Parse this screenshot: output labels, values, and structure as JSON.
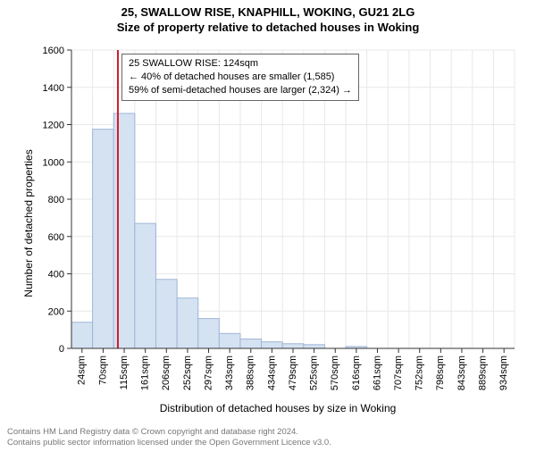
{
  "header": {
    "line1": "25, SWALLOW RISE, KNAPHILL, WOKING, GU21 2LG",
    "line2": "Size of property relative to detached houses in Woking"
  },
  "chart": {
    "type": "histogram",
    "background_color": "#ffffff",
    "grid_color": "#e8e8e8",
    "axis_color": "#333333",
    "bar_fill": "#d5e2f2",
    "bar_stroke": "#9fb6d6",
    "vline_color": "#d11a2a",
    "yaxis": {
      "label": "Number of detached properties",
      "min": 0,
      "max": 1600,
      "ticks": [
        0,
        200,
        400,
        600,
        800,
        1000,
        1200,
        1400,
        1600
      ],
      "label_fontsize": 12,
      "tick_fontsize": 11
    },
    "xaxis": {
      "label": "Distribution of detached houses by size in Woking",
      "categories": [
        "24sqm",
        "70sqm",
        "115sqm",
        "161sqm",
        "206sqm",
        "252sqm",
        "297sqm",
        "343sqm",
        "388sqm",
        "434sqm",
        "479sqm",
        "525sqm",
        "570sqm",
        "616sqm",
        "661sqm",
        "707sqm",
        "752sqm",
        "798sqm",
        "843sqm",
        "889sqm",
        "934sqm"
      ],
      "label_fontsize": 12,
      "tick_fontsize": 11
    },
    "values": [
      140,
      1175,
      1260,
      670,
      370,
      270,
      160,
      80,
      50,
      35,
      25,
      20,
      0,
      10,
      0,
      0,
      0,
      0,
      0,
      0,
      0
    ],
    "vline_at_index": 2.2,
    "vline_width": 2
  },
  "callout": {
    "line1": "25 SWALLOW RISE: 124sqm",
    "line2": "← 40% of detached houses are smaller (1,585)",
    "line3": "59% of semi-detached houses are larger (2,324) →"
  },
  "attribution": {
    "line1": "Contains HM Land Registry data © Crown copyright and database right 2024.",
    "line2": "Contains public sector information licensed under the Open Government Licence v3.0."
  }
}
